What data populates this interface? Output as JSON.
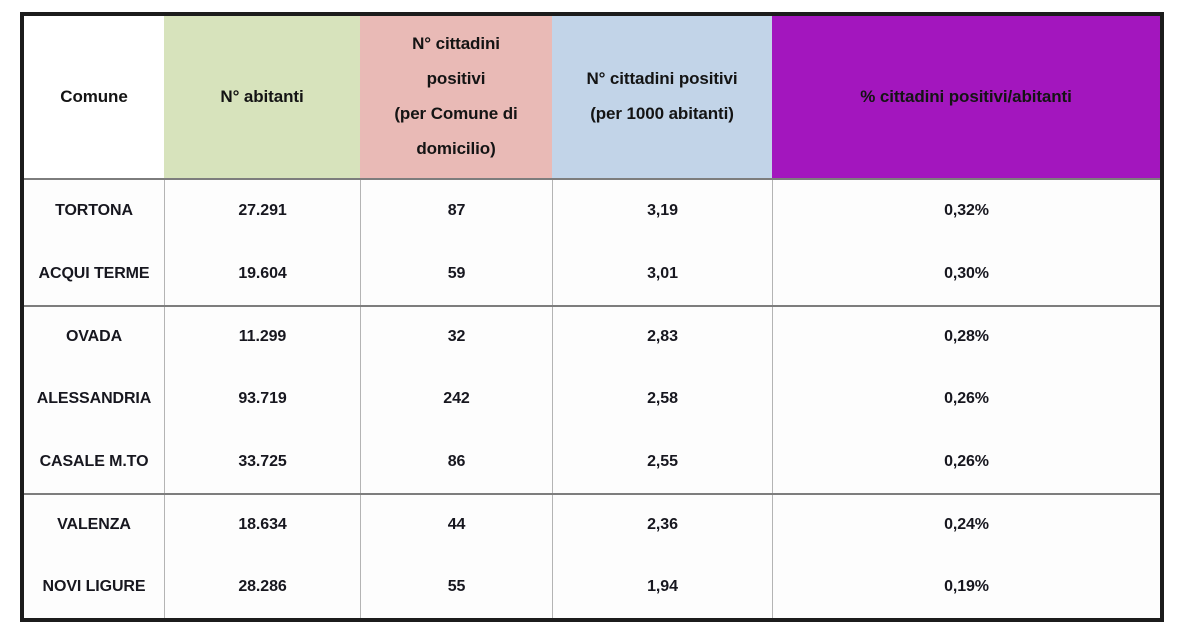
{
  "chart_data": {
    "type": "table",
    "columns": [
      {
        "label": "Comune",
        "bg": "#FFFFFF"
      },
      {
        "label": "N° abitanti",
        "bg": "#D7E3BC"
      },
      {
        "label": "N° cittadini\npositivi\n(per Comune di\ndomicilio)",
        "bg": "#E9BAB6"
      },
      {
        "label": "N° cittadini positivi\n(per 1000 abitanti)",
        "bg": "#C2D4E8"
      },
      {
        "label": "% cittadini positivi/abitanti",
        "bg": "#A316BE"
      }
    ],
    "rows": [
      [
        "TORTONA",
        "27.291",
        "87",
        "3,19",
        "0,32%"
      ],
      [
        "ACQUI TERME",
        "19.604",
        "59",
        "3,01",
        "0,30%"
      ],
      [
        "OVADA",
        "11.299",
        "32",
        "2,83",
        "0,28%"
      ],
      [
        "ALESSANDRIA",
        "93.719",
        "242",
        "2,58",
        "0,26%"
      ],
      [
        "CASALE M.TO",
        "33.725",
        "86",
        "2,55",
        "0,26%"
      ],
      [
        "VALENZA",
        "18.634",
        "44",
        "2,36",
        "0,24%"
      ],
      [
        "NOVI LIGURE",
        "28.286",
        "55",
        "1,94",
        "0,19%"
      ]
    ],
    "row_groups": [
      [
        0,
        1
      ],
      [
        2,
        3,
        4
      ],
      [
        5,
        6
      ]
    ],
    "colors": {
      "outer_border": "#1C1C1C",
      "group_separator": "#7D7D7D",
      "column_separator": "#B4B4B4",
      "header_green": "#D7E3BC",
      "header_pink": "#E9BAB6",
      "header_blue": "#C2D4E8",
      "header_purple": "#A316BE"
    },
    "legend_position": "none",
    "grid": "partial"
  }
}
